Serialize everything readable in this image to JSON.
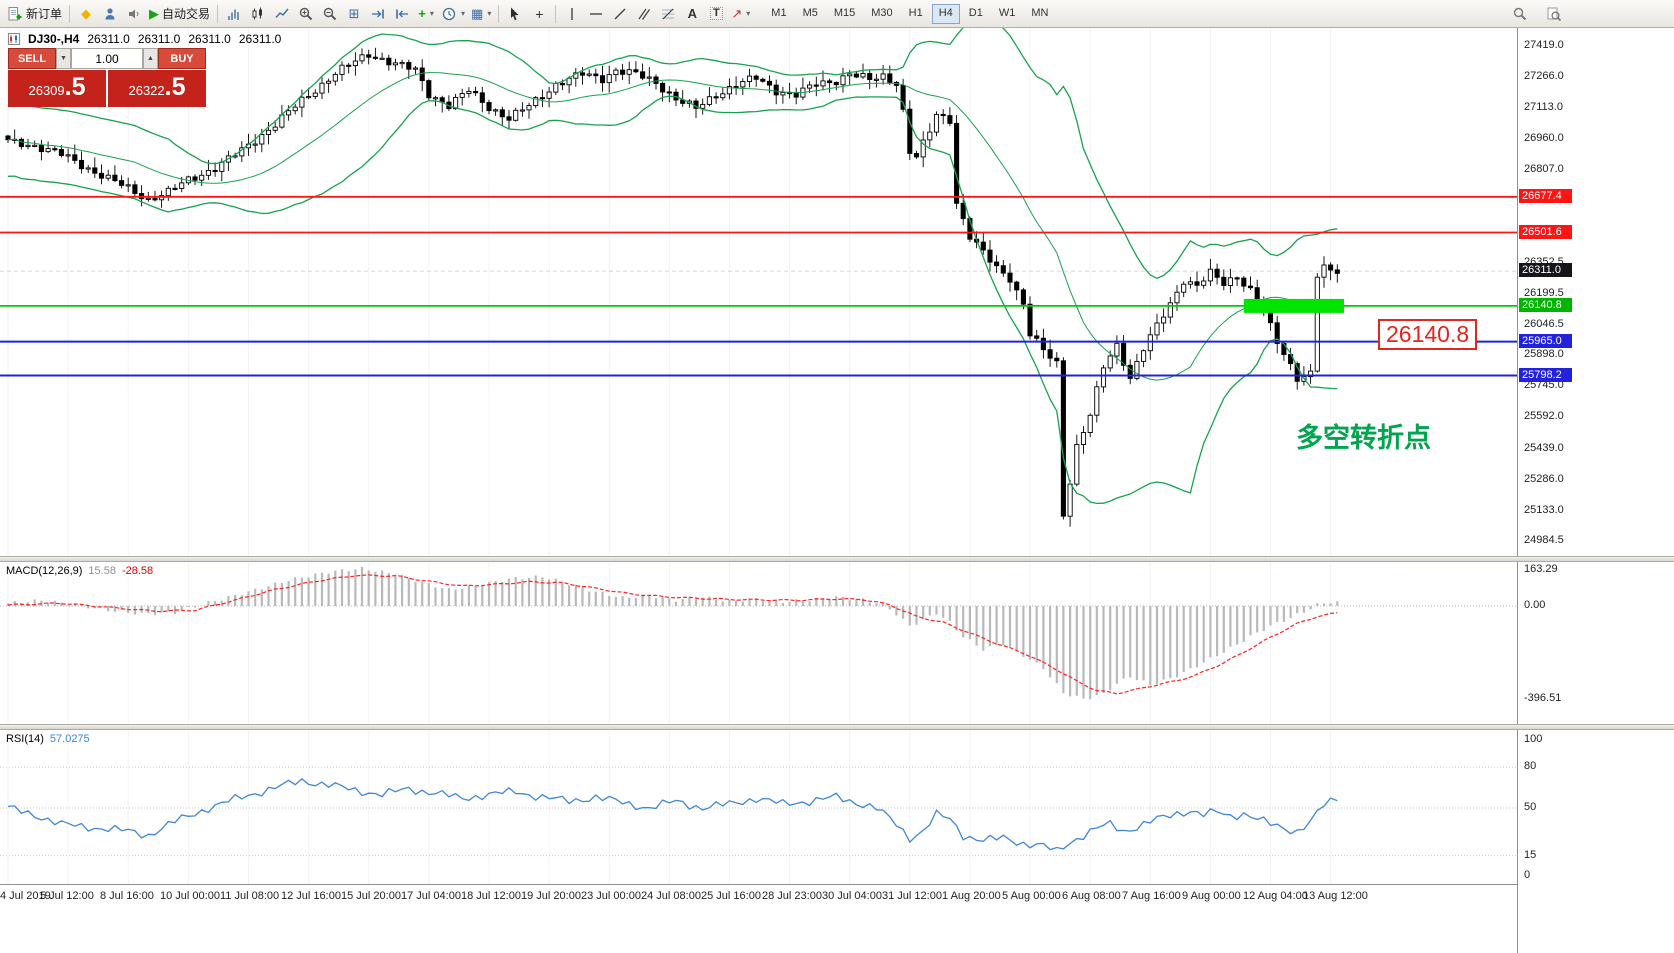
{
  "toolbar": {
    "new_order_label": "新订单",
    "autotrade_label": "自动交易",
    "timeframes": [
      "M1",
      "M5",
      "M15",
      "M30",
      "H1",
      "H4",
      "D1",
      "W1",
      "MN"
    ],
    "active_timeframe": "H4"
  },
  "icons": {
    "new_order": "doc-plus-icon",
    "market_watch": "diamond-icon",
    "data_window": "person-icon",
    "alerts": "speaker-icon",
    "autotrade": "play-icon",
    "bar_chart": "ohlc-bars-icon",
    "candle_chart": "candlestick-icon",
    "line_chart": "line-chart-icon",
    "zoom_in": "magnifier-plus-icon",
    "zoom_out": "magnifier-minus-icon",
    "tile_windows": "tile-windows-icon",
    "auto_scroll": "arrow-to-bar-right-icon",
    "chart_shift": "arrow-to-bar-left-icon",
    "indicators": "plus-icon",
    "periods": "clock-icon",
    "templates": "grid-icon",
    "cursor": "pointer-arrow-icon",
    "crosshair": "crosshair-icon",
    "vertical_line": "vertical-line-icon",
    "horizontal_line": "horizontal-line-icon",
    "trendline": "diagonal-line-icon",
    "channel": "parallel-lines-icon",
    "fibonacci": "fibo-lines-icon",
    "text": "letter-a-icon",
    "text_label": "letter-t-icon",
    "arrows": "arrow-marker-icon",
    "search": "magnifier-icon",
    "zoom_page": "magnifier-doc-icon"
  },
  "chart_header": {
    "symbol_period": "DJ30-,H4",
    "open": "26311.0",
    "high": "26311.0",
    "low": "26311.0",
    "close": "26311.0"
  },
  "trade_panel": {
    "sell_label": "SELL",
    "buy_label": "BUY",
    "volume": "1.00",
    "sell_price": "26309.5",
    "buy_price": "26322.5",
    "sell_price_main": "26309",
    "sell_price_frac": ".5",
    "buy_price_main": "26322",
    "buy_price_frac": ".5",
    "down_arrow": "▼",
    "up_arrow": "▲"
  },
  "panes": {
    "macd_name": "MACD(12,26,9)",
    "macd_main": "15.58",
    "macd_signal": "-28.58",
    "rsi_name": "RSI(14)",
    "rsi_value": "57.0275"
  },
  "annotations": {
    "pivot_price_label": "26140.8",
    "pivot_note": "多空转折点"
  },
  "chart_data": {
    "type": "candlestick+indicators",
    "symbol": "DJ30-",
    "period": "H4",
    "n": 200,
    "current_price": 26311.0,
    "price_waypoints": [
      [
        0,
        26950
      ],
      [
        4,
        26930
      ],
      [
        8,
        26885
      ],
      [
        13,
        26800
      ],
      [
        17,
        26735
      ],
      [
        21,
        26665
      ],
      [
        24,
        26700
      ],
      [
        27,
        26760
      ],
      [
        31,
        26820
      ],
      [
        35,
        26905
      ],
      [
        40,
        27035
      ],
      [
        44,
        27150
      ],
      [
        49,
        27285
      ],
      [
        54,
        27380
      ],
      [
        58,
        27330
      ],
      [
        61,
        27300
      ],
      [
        63,
        27185
      ],
      [
        66,
        27125
      ],
      [
        69,
        27200
      ],
      [
        72,
        27120
      ],
      [
        75,
        27060
      ],
      [
        78,
        27125
      ],
      [
        82,
        27230
      ],
      [
        86,
        27280
      ],
      [
        89,
        27260
      ],
      [
        91,
        27300
      ],
      [
        94,
        27280
      ],
      [
        97,
        27240
      ],
      [
        100,
        27160
      ],
      [
        103,
        27110
      ],
      [
        106,
        27180
      ],
      [
        109,
        27230
      ],
      [
        112,
        27260
      ],
      [
        115,
        27200
      ],
      [
        118,
        27180
      ],
      [
        121,
        27230
      ],
      [
        124,
        27250
      ],
      [
        126,
        27285
      ],
      [
        129,
        27250
      ],
      [
        131,
        27270
      ],
      [
        133,
        27240
      ],
      [
        134,
        27100
      ],
      [
        135,
        26900
      ],
      [
        136,
        26870
      ],
      [
        138,
        27000
      ],
      [
        139,
        27080
      ],
      [
        141,
        27060
      ],
      [
        142,
        26650
      ],
      [
        144,
        26480
      ],
      [
        146,
        26400
      ],
      [
        148,
        26330
      ],
      [
        150,
        26280
      ],
      [
        152,
        26150
      ],
      [
        153,
        26000
      ],
      [
        155,
        25920
      ],
      [
        157,
        25860
      ],
      [
        158,
        25120
      ],
      [
        159,
        25280
      ],
      [
        160,
        25450
      ],
      [
        162,
        25600
      ],
      [
        164,
        25840
      ],
      [
        166,
        25950
      ],
      [
        168,
        25790
      ],
      [
        170,
        25930
      ],
      [
        172,
        26040
      ],
      [
        174,
        26150
      ],
      [
        176,
        26270
      ],
      [
        178,
        26240
      ],
      [
        180,
        26300
      ],
      [
        182,
        26250
      ],
      [
        184,
        26290
      ],
      [
        186,
        26220
      ],
      [
        188,
        26110
      ],
      [
        190,
        25960
      ],
      [
        192,
        25850
      ],
      [
        193,
        25790
      ],
      [
        195,
        25810
      ],
      [
        196,
        26290
      ],
      [
        197,
        26330
      ],
      [
        198,
        26300
      ],
      [
        199,
        26311
      ]
    ],
    "bollinger_period": 20,
    "bollinger_dev": 2,
    "hlines": [
      {
        "price": 26677.4,
        "color": "#ff1414",
        "width": 1.8
      },
      {
        "price": 26501.6,
        "color": "#ff1414",
        "width": 1.8
      },
      {
        "price": 26140.8,
        "color": "#00cc00",
        "width": 1.8
      },
      {
        "price": 25965.0,
        "color": "#2222dd",
        "width": 2
      },
      {
        "price": 25798.2,
        "color": "#2222dd",
        "width": 2
      }
    ],
    "highlight_rect": {
      "price": 26140.8,
      "i1": 185,
      "i2": 200,
      "color": "#00e400"
    },
    "price_ticks": [
      {
        "p": 27419.0,
        "text": "27419.0"
      },
      {
        "p": 27266.0,
        "text": "27266.0"
      },
      {
        "p": 27113.0,
        "text": "27113.0"
      },
      {
        "p": 26960.0,
        "text": "26960.0"
      },
      {
        "p": 26807.0,
        "text": "26807.0"
      },
      {
        "p": 26352.5,
        "text": "26352.5"
      },
      {
        "p": 26199.5,
        "text": "26199.5"
      },
      {
        "p": 26046.5,
        "text": "26046.5"
      },
      {
        "p": 25898.0,
        "text": "25898.0"
      },
      {
        "p": 25745.0,
        "text": "25745.0"
      },
      {
        "p": 25592.0,
        "text": "25592.0"
      },
      {
        "p": 25439.0,
        "text": "25439.0"
      },
      {
        "p": 25286.0,
        "text": "25286.0"
      },
      {
        "p": 25133.0,
        "text": "25133.0"
      },
      {
        "p": 24984.5,
        "text": "24984.5"
      }
    ],
    "axis_labels": [
      {
        "price": 26677.4,
        "text": "26677.4",
        "bg": "#ff1414"
      },
      {
        "price": 26501.6,
        "text": "26501.6",
        "bg": "#ff1414"
      },
      {
        "price": 26311.0,
        "text": "26311.0",
        "bg": "#14161c"
      },
      {
        "price": 26140.8,
        "text": "26140.8",
        "bg": "#00b400"
      },
      {
        "price": 25965.0,
        "text": "25965.0",
        "bg": "#2222dd"
      },
      {
        "price": 25798.2,
        "text": "25798.2",
        "bg": "#2222dd"
      }
    ],
    "macd": {
      "hist_waypoints": [
        [
          0,
          12
        ],
        [
          5,
          24
        ],
        [
          10,
          6
        ],
        [
          15,
          -18
        ],
        [
          20,
          -34
        ],
        [
          25,
          -28
        ],
        [
          30,
          14
        ],
        [
          36,
          60
        ],
        [
          42,
          110
        ],
        [
          48,
          145
        ],
        [
          53,
          160
        ],
        [
          58,
          135
        ],
        [
          62,
          100
        ],
        [
          66,
          70
        ],
        [
          70,
          85
        ],
        [
          75,
          115
        ],
        [
          80,
          125
        ],
        [
          84,
          95
        ],
        [
          88,
          60
        ],
        [
          92,
          35
        ],
        [
          96,
          45
        ],
        [
          100,
          25
        ],
        [
          104,
          38
        ],
        [
          108,
          20
        ],
        [
          112,
          30
        ],
        [
          116,
          18
        ],
        [
          120,
          26
        ],
        [
          124,
          38
        ],
        [
          128,
          26
        ],
        [
          131,
          8
        ],
        [
          133,
          -35
        ],
        [
          135,
          -85
        ],
        [
          137,
          -60
        ],
        [
          139,
          -30
        ],
        [
          141,
          -70
        ],
        [
          143,
          -130
        ],
        [
          146,
          -185
        ],
        [
          149,
          -160
        ],
        [
          152,
          -210
        ],
        [
          155,
          -265
        ],
        [
          158,
          -370
        ],
        [
          161,
          -396
        ],
        [
          164,
          -375
        ],
        [
          166,
          -330
        ],
        [
          168,
          -300
        ],
        [
          171,
          -335
        ],
        [
          174,
          -310
        ],
        [
          177,
          -270
        ],
        [
          180,
          -225
        ],
        [
          183,
          -180
        ],
        [
          186,
          -130
        ],
        [
          189,
          -85
        ],
        [
          192,
          -50
        ],
        [
          194,
          -25
        ],
        [
          196,
          5
        ],
        [
          198,
          18
        ],
        [
          199,
          15
        ]
      ],
      "signal_waypoints": [
        [
          0,
          4
        ],
        [
          8,
          12
        ],
        [
          16,
          -8
        ],
        [
          22,
          -22
        ],
        [
          28,
          -18
        ],
        [
          34,
          25
        ],
        [
          40,
          70
        ],
        [
          46,
          105
        ],
        [
          52,
          130
        ],
        [
          58,
          128
        ],
        [
          63,
          105
        ],
        [
          68,
          85
        ],
        [
          73,
          92
        ],
        [
          78,
          103
        ],
        [
          83,
          98
        ],
        [
          88,
          75
        ],
        [
          93,
          52
        ],
        [
          98,
          40
        ],
        [
          103,
          33
        ],
        [
          108,
          28
        ],
        [
          113,
          26
        ],
        [
          118,
          24
        ],
        [
          123,
          30
        ],
        [
          128,
          28
        ],
        [
          132,
          5
        ],
        [
          136,
          -45
        ],
        [
          140,
          -70
        ],
        [
          144,
          -115
        ],
        [
          148,
          -160
        ],
        [
          152,
          -200
        ],
        [
          156,
          -255
        ],
        [
          160,
          -320
        ],
        [
          163,
          -360
        ],
        [
          166,
          -372
        ],
        [
          169,
          -355
        ],
        [
          172,
          -335
        ],
        [
          175,
          -318
        ],
        [
          178,
          -292
        ],
        [
          181,
          -255
        ],
        [
          184,
          -212
        ],
        [
          187,
          -165
        ],
        [
          190,
          -118
        ],
        [
          193,
          -75
        ],
        [
          196,
          -45
        ],
        [
          199,
          -29
        ]
      ],
      "ticks": [
        {
          "v": 163.29,
          "text": "163.29"
        },
        {
          "v": 0,
          "text": "0.00"
        },
        {
          "v": -396.51,
          "text": "-396.51"
        }
      ]
    },
    "rsi": {
      "waypoints": [
        [
          0,
          50
        ],
        [
          4,
          45
        ],
        [
          8,
          38
        ],
        [
          14,
          35
        ],
        [
          18,
          33
        ],
        [
          21,
          30
        ],
        [
          25,
          40
        ],
        [
          30,
          50
        ],
        [
          35,
          58
        ],
        [
          40,
          65
        ],
        [
          44,
          70
        ],
        [
          48,
          67
        ],
        [
          52,
          63
        ],
        [
          56,
          60
        ],
        [
          60,
          64
        ],
        [
          64,
          61
        ],
        [
          68,
          57
        ],
        [
          72,
          60
        ],
        [
          76,
          62
        ],
        [
          80,
          58
        ],
        [
          84,
          55
        ],
        [
          88,
          58
        ],
        [
          92,
          54
        ],
        [
          96,
          50
        ],
        [
          100,
          55
        ],
        [
          104,
          50
        ],
        [
          108,
          53
        ],
        [
          112,
          57
        ],
        [
          116,
          53
        ],
        [
          120,
          55
        ],
        [
          124,
          58
        ],
        [
          127,
          54
        ],
        [
          130,
          50
        ],
        [
          133,
          38
        ],
        [
          135,
          28
        ],
        [
          137,
          33
        ],
        [
          139,
          45
        ],
        [
          141,
          42
        ],
        [
          143,
          30
        ],
        [
          146,
          26
        ],
        [
          149,
          28
        ],
        [
          152,
          24
        ],
        [
          155,
          22
        ],
        [
          157,
          18
        ],
        [
          159,
          25
        ],
        [
          161,
          30
        ],
        [
          163,
          35
        ],
        [
          165,
          38
        ],
        [
          167,
          33
        ],
        [
          169,
          36
        ],
        [
          171,
          40
        ],
        [
          173,
          43
        ],
        [
          175,
          46
        ],
        [
          177,
          48
        ],
        [
          179,
          45
        ],
        [
          181,
          47
        ],
        [
          183,
          44
        ],
        [
          185,
          46
        ],
        [
          187,
          42
        ],
        [
          189,
          38
        ],
        [
          191,
          35
        ],
        [
          193,
          33
        ],
        [
          195,
          40
        ],
        [
          197,
          52
        ],
        [
          199,
          57
        ]
      ],
      "levels": [
        80,
        50,
        15
      ],
      "ticks": [
        {
          "v": 100,
          "text": "100"
        },
        {
          "v": 80,
          "text": "80"
        },
        {
          "v": 50,
          "text": "50"
        },
        {
          "v": 15,
          "text": "15"
        },
        {
          "v": 0,
          "text": "0"
        }
      ]
    },
    "time_labels": [
      {
        "i": 0,
        "text": "4 Jul 2019"
      },
      {
        "i": 9,
        "text": "5 Jul 12:00"
      },
      {
        "i": 18,
        "text": "8 Jul 16:00"
      },
      {
        "i": 27,
        "text": "10 Jul 00:00"
      },
      {
        "i": 36,
        "text": "11 Jul 08:00"
      },
      {
        "i": 45,
        "text": "12 Jul 16:00"
      },
      {
        "i": 54,
        "text": "15 Jul 20:00"
      },
      {
        "i": 63,
        "text": "17 Jul 04:00"
      },
      {
        "i": 72,
        "text": "18 Jul 12:00"
      },
      {
        "i": 81,
        "text": "19 Jul 20:00"
      },
      {
        "i": 90,
        "text": "23 Jul 00:00"
      },
      {
        "i": 99,
        "text": "24 Jul 08:00"
      },
      {
        "i": 108,
        "text": "25 Jul 16:00"
      },
      {
        "i": 117,
        "text": "28 Jul 23:00"
      },
      {
        "i": 126,
        "text": "30 Jul 04:00"
      },
      {
        "i": 135,
        "text": "31 Jul 12:00"
      },
      {
        "i": 144,
        "text": "1 Aug 20:00"
      },
      {
        "i": 153,
        "text": "5 Aug 00:00"
      },
      {
        "i": 162,
        "text": "6 Aug 08:00"
      },
      {
        "i": 171,
        "text": "7 Aug 16:00"
      },
      {
        "i": 180,
        "text": "9 Aug 00:00"
      },
      {
        "i": 189,
        "text": "12 Aug 04:00"
      },
      {
        "i": 198,
        "text": "13 Aug 12:00"
      }
    ]
  }
}
